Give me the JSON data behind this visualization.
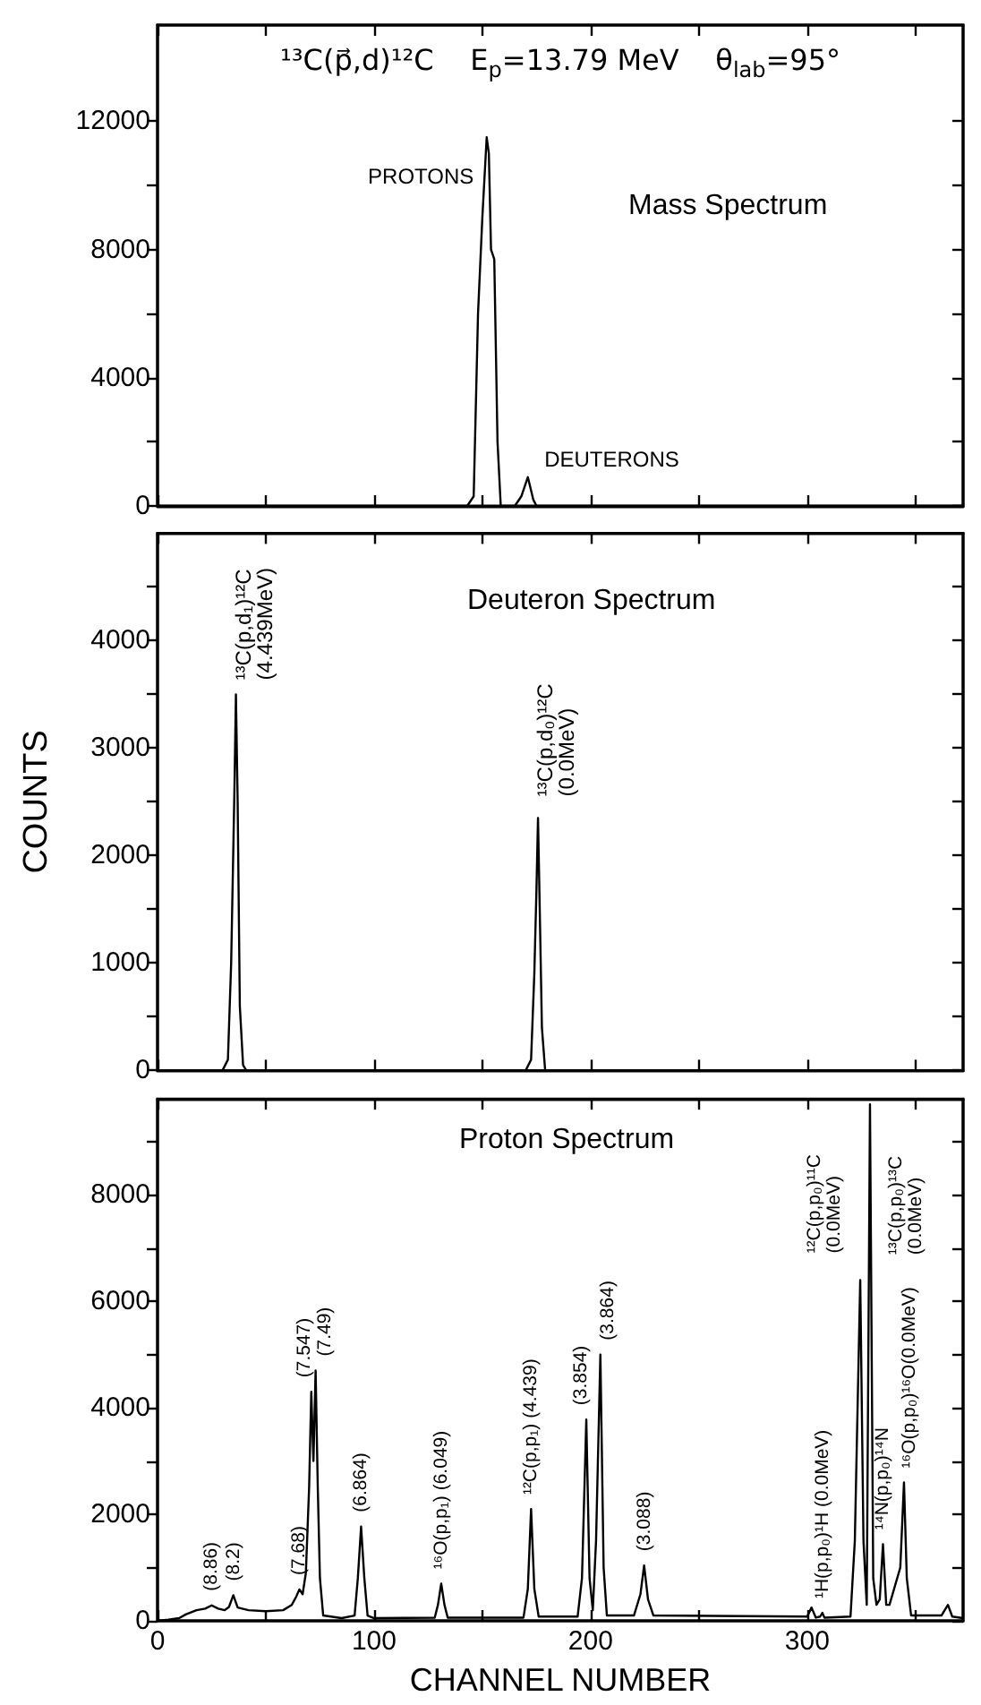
{
  "chart_data": [
    {
      "type": "line",
      "title": "¹³C(p⃗,d)¹²C    E$_{p}$=13.79 MeV    θ$_{lab}$=95°",
      "subtitle": "Mass Spectrum",
      "color": "#000000",
      "x": [
        0,
        143,
        146,
        148,
        150,
        152,
        153,
        154,
        155.5,
        157,
        158.5,
        165,
        168,
        171,
        173.5,
        175,
        372
      ],
      "values": [
        0,
        0,
        300,
        6000,
        9000,
        11500,
        11000,
        8000,
        7700,
        2000,
        0,
        0,
        300,
        900,
        200,
        0,
        0
      ],
      "xlim": [
        0,
        372
      ],
      "ylim": [
        0,
        15000
      ],
      "xticks": [
        0,
        {
          "value": 50,
          "label": null
        },
        {
          "value": 100,
          "label": null
        },
        {
          "value": 150,
          "label": null
        },
        {
          "value": 200,
          "label": null
        },
        {
          "value": 250,
          "label": null
        },
        {
          "value": 300,
          "label": null
        },
        {
          "value": 350,
          "label": null
        }
      ],
      "yticks": [
        0,
        {
          "value": 2000,
          "label": null
        },
        4000,
        {
          "value": 6000,
          "label": null
        },
        8000,
        {
          "value": 10000,
          "label": null
        },
        12000
      ],
      "tick_labels": "y",
      "annotations": [
        {
          "text": "PROTONS",
          "x": 151,
          "y": 9500
        },
        {
          "text": "DEUTERONS",
          "x": 172,
          "y": 1000
        }
      ]
    },
    {
      "type": "line",
      "subtitle": "Deuteron Spectrum",
      "ylabel": "COUNTS",
      "color": "#000000",
      "x": [
        0,
        30,
        32.5,
        34,
        35.5,
        36.2,
        37,
        38,
        39.5,
        41,
        170,
        172.5,
        174,
        175,
        175.7,
        176.5,
        177.5,
        179,
        372
      ],
      "values": [
        0,
        0,
        100,
        1000,
        2600,
        3500,
        2500,
        600,
        50,
        0,
        0,
        100,
        900,
        1700,
        2350,
        1500,
        400,
        0,
        0
      ],
      "xlim": [
        0,
        372
      ],
      "ylim": [
        0,
        5000
      ],
      "xticks": [
        0,
        {
          "value": 50,
          "label": null
        },
        {
          "value": 100,
          "label": null
        },
        {
          "value": 150,
          "label": null
        },
        {
          "value": 200,
          "label": null
        },
        {
          "value": 250,
          "label": null
        },
        {
          "value": 300,
          "label": null
        },
        {
          "value": 350,
          "label": null
        }
      ],
      "yticks": [
        0,
        {
          "value": 500,
          "label": null
        },
        1000,
        {
          "value": 1500,
          "label": null
        },
        2000,
        {
          "value": 2500,
          "label": null
        },
        3000,
        {
          "value": 3500,
          "label": null
        },
        4000,
        {
          "value": 4500,
          "label": null
        }
      ],
      "tick_labels": "y",
      "annotations": [
        {
          "text": "¹³C(p,d₁)¹²C (4.439MeV)",
          "x": 36.2,
          "y": 3500
        },
        {
          "text": "¹³C(p,d₀)¹²C (0.0MeV)",
          "x": 175.7,
          "y": 2350
        }
      ]
    },
    {
      "type": "line",
      "subtitle": "Proton Spectrum",
      "xlabel": "CHANNEL NUMBER",
      "color": "#000000",
      "x": [
        0,
        5,
        10,
        13,
        18,
        22,
        25,
        28,
        31,
        33,
        35,
        37,
        42,
        50,
        58,
        62,
        64,
        65.5,
        67,
        68.5,
        70,
        71,
        72,
        73,
        74,
        75,
        76.5,
        85,
        91,
        92.5,
        94,
        95.5,
        97,
        100,
        128,
        129.5,
        131,
        132.5,
        134,
        169,
        171,
        172.5,
        174,
        176,
        194,
        196,
        198,
        199.5,
        201,
        202.5,
        204.5,
        206,
        207.5,
        220,
        223,
        224.7,
        226.5,
        229,
        300,
        302,
        304,
        306,
        307,
        308,
        320,
        322,
        324.5,
        326,
        327.5,
        329,
        330.5,
        332,
        333.5,
        335,
        336.5,
        338,
        343,
        344.7,
        346,
        348,
        362,
        365,
        367,
        372
      ],
      "values": [
        0,
        20,
        50,
        120,
        200,
        230,
        290,
        230,
        200,
        260,
        480,
        250,
        200,
        180,
        200,
        300,
        450,
        590,
        500,
        900,
        2500,
        4300,
        3000,
        4700,
        2500,
        800,
        100,
        50,
        100,
        800,
        1770,
        800,
        100,
        50,
        60,
        300,
        700,
        300,
        60,
        60,
        600,
        2100,
        600,
        80,
        80,
        800,
        3780,
        800,
        200,
        1500,
        5000,
        1000,
        100,
        100,
        500,
        1040,
        400,
        100,
        80,
        250,
        60,
        80,
        150,
        60,
        80,
        1500,
        6400,
        1500,
        300,
        9700,
        800,
        300,
        400,
        1440,
        300,
        300,
        1000,
        2600,
        800,
        100,
        100,
        300,
        80,
        50
      ],
      "xlim": [
        0,
        372
      ],
      "ylim": [
        0,
        9800
      ],
      "xticks": [
        0,
        {
          "value": 50,
          "label": null
        },
        100,
        {
          "value": 150,
          "label": null
        },
        200,
        {
          "value": 250,
          "label": null
        },
        300,
        {
          "value": 350,
          "label": null
        }
      ],
      "yticks": [
        0,
        {
          "value": 1000,
          "label": null
        },
        2000,
        {
          "value": 3000,
          "label": null
        },
        4000,
        {
          "value": 5000,
          "label": null
        },
        6000,
        {
          "value": 7000,
          "label": null
        },
        8000,
        {
          "value": 9000,
          "label": null
        }
      ],
      "annotations": [
        {
          "text": "(8.86)",
          "x": 25,
          "y": 290
        },
        {
          "text": "(8.2)",
          "x": 35,
          "y": 480
        },
        {
          "text": "(7.68)",
          "x": 65.5,
          "y": 590
        },
        {
          "text": "(7.547)",
          "x": 71,
          "y": 4300
        },
        {
          "text": "(7.49)",
          "x": 73,
          "y": 4700
        },
        {
          "text": "(6.864)",
          "x": 94,
          "y": 1770
        },
        {
          "text": "¹⁶O(p,p₁) (6.049)",
          "x": 131,
          "y": 700
        },
        {
          "text": "¹²C(p,p₁) (4.439)",
          "x": 172.5,
          "y": 2100
        },
        {
          "text": "(3.854)",
          "x": 198,
          "y": 3780
        },
        {
          "text": "(3.864)",
          "x": 204.5,
          "y": 5000
        },
        {
          "text": "(3.088)",
          "x": 224.7,
          "y": 1040
        },
        {
          "text": "¹H(p,p₀)¹H (0.0MeV)",
          "x": 307,
          "y": 150
        },
        {
          "text": "¹²C(p,p₀)¹¹C (0.0MeV)",
          "x": 324.5,
          "y": 6400
        },
        {
          "text": "¹³C(p,p₀)¹³C (0.0MeV)",
          "x": 329,
          "y": 9700
        },
        {
          "text": "¹⁴N(p,p₀)¹⁴N",
          "x": 335,
          "y": 1440
        },
        {
          "text": "¹⁶O(p,p₀)¹⁶O(0.0MeV)",
          "x": 344.7,
          "y": 2600
        }
      ]
    }
  ]
}
